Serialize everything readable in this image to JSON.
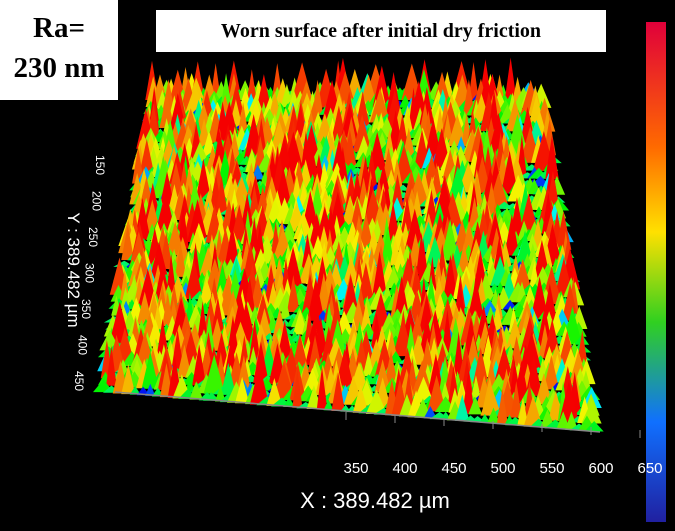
{
  "ra_label": {
    "line1": "Ra=",
    "line2": "230 nm"
  },
  "title": "Worn surface after initial dry friction",
  "x_axis": {
    "label": "X : 389.482 µm",
    "ticks": [
      "350",
      "400",
      "450",
      "500",
      "550",
      "600",
      "650"
    ]
  },
  "y_axis": {
    "label": "Y : 389.482 µm",
    "ticks": [
      "150",
      "200",
      "250",
      "300",
      "350",
      "400",
      "450"
    ]
  }
}
